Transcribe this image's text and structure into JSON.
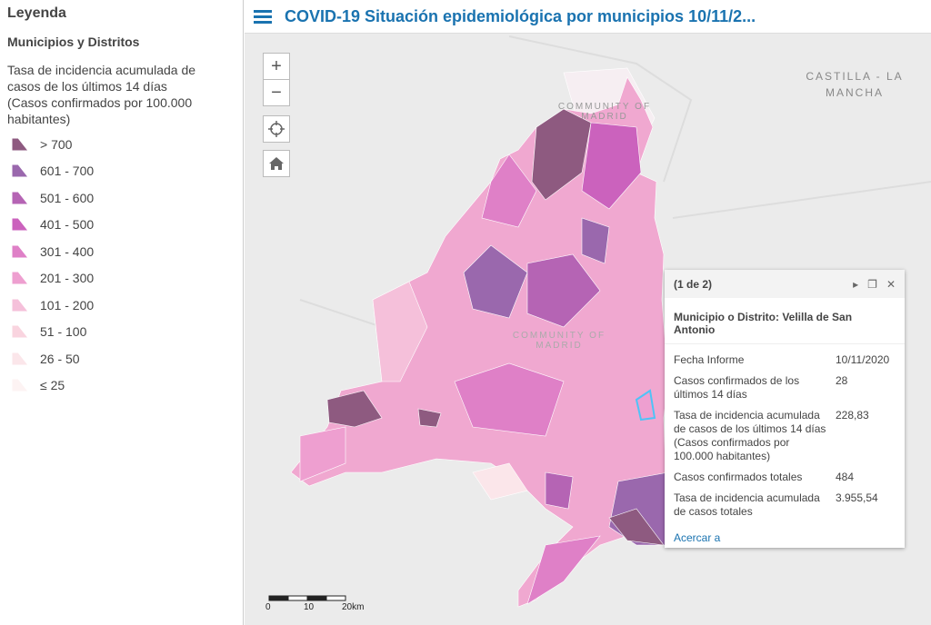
{
  "sidebar": {
    "title": "Leyenda",
    "layer": "Municipios y Distritos",
    "field": "Tasa de incidencia acumulada de casos de los últimos 14 días (Casos confirmados por 100.000 habitantes)",
    "legend": [
      {
        "label": "> 700",
        "color": "#8e5a80"
      },
      {
        "label": "601 - 700",
        "color": "#9a68ad"
      },
      {
        "label": "501 - 600",
        "color": "#b564b4"
      },
      {
        "label": "401 - 500",
        "color": "#cb62bd"
      },
      {
        "label": "301 - 400",
        "color": "#df80c7"
      },
      {
        "label": "201 - 300",
        "color": "#ee9fd0"
      },
      {
        "label": "101 - 200",
        "color": "#f5c0da"
      },
      {
        "label": "51 - 100",
        "color": "#f9d4df"
      },
      {
        "label": "26 - 50",
        "color": "#fbe6ea"
      },
      {
        "label": "≤ 25",
        "color": "#fdf3f3"
      }
    ]
  },
  "header": {
    "title": "COVID-19 Situación epidemiológica por municipios 10/11/2..."
  },
  "zoom": {
    "in": "+",
    "out": "−"
  },
  "map_labels": {
    "region": "CASTILLA - LA MANCHA",
    "community_top": "COMMUNITY OF MADRID",
    "community_center": "COMMUNITY OF MADRID"
  },
  "scale": {
    "labels": [
      "0",
      "10",
      "20km"
    ]
  },
  "popup": {
    "pager": "(1 de 2)",
    "heading": "Municipio o Distrito: Velilla de San Antonio",
    "rows": [
      [
        "Fecha Informe",
        "10/11/2020"
      ],
      [
        "Casos confirmados de los últimos 14 días",
        "28"
      ],
      [
        "Tasa de incidencia acumulada de casos de los últimos 14 días (Casos confirmados por 100.000 habitantes)",
        "228,83"
      ],
      [
        "Casos confirmados totales",
        "484"
      ],
      [
        "Tasa de incidencia acumulada de casos totales",
        "3.955,54"
      ]
    ],
    "action": "Acercar a"
  }
}
